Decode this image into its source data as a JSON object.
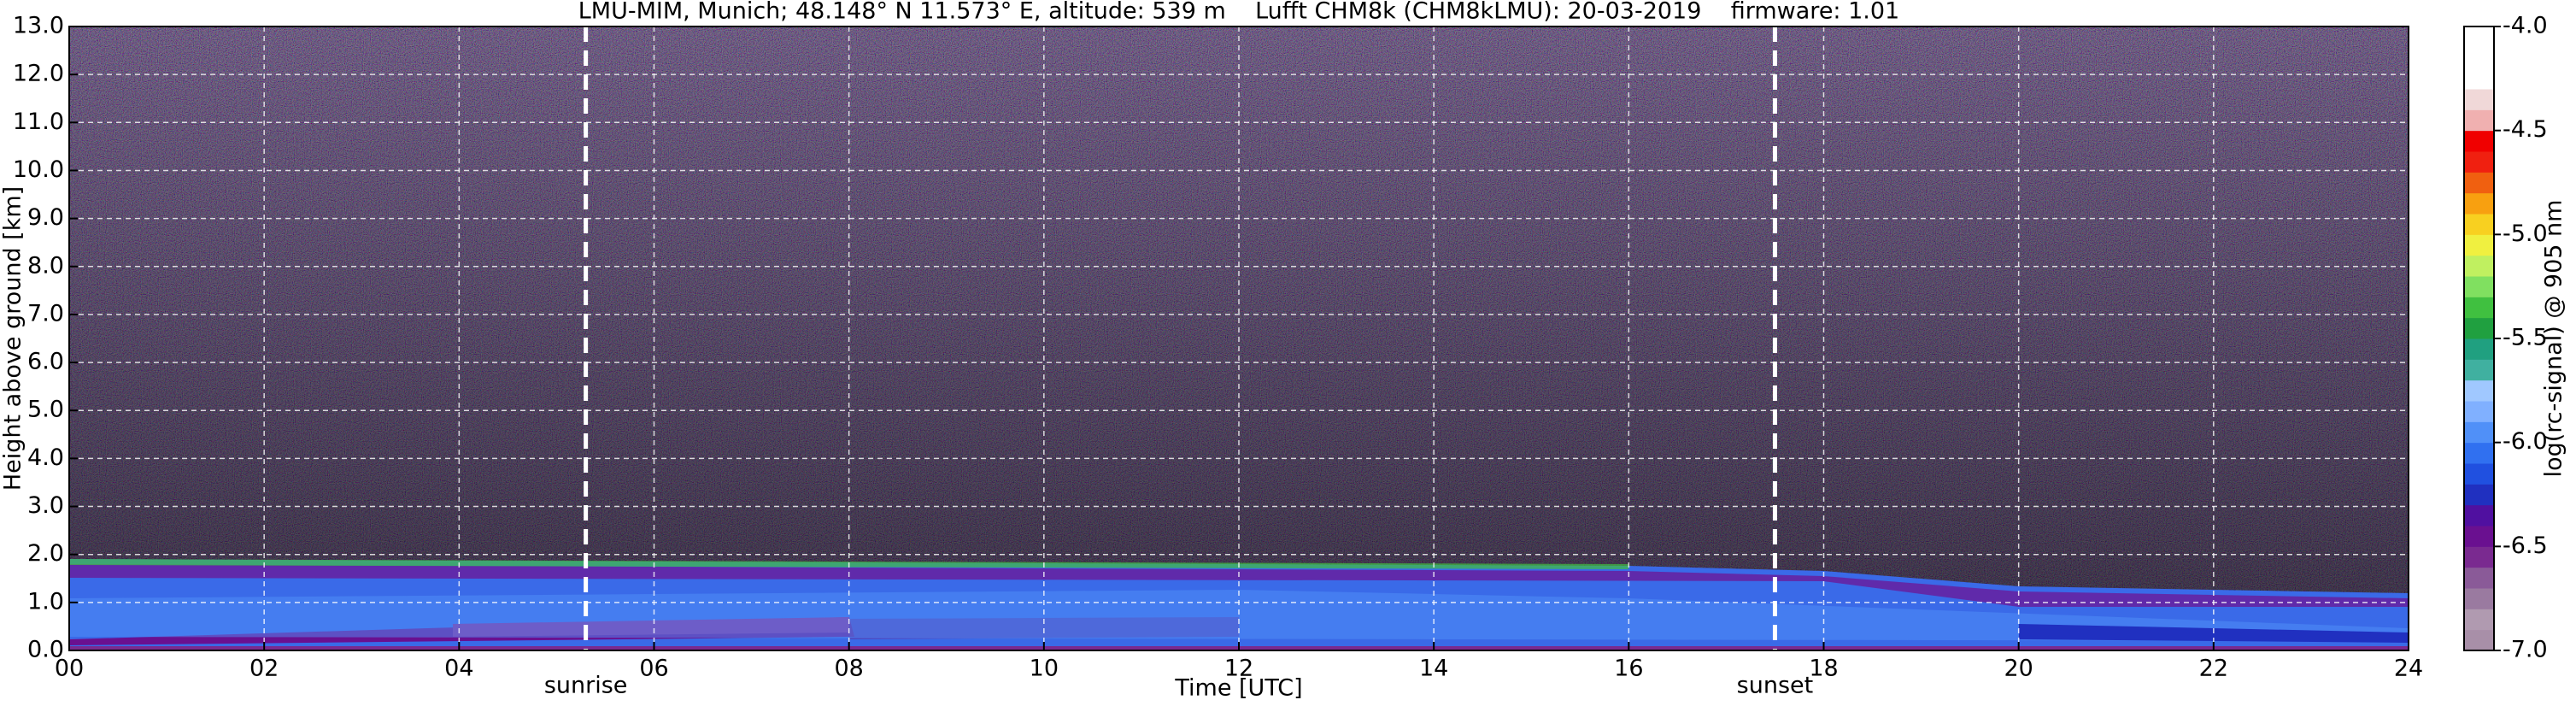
{
  "chart_data": {
    "type": "heatmap",
    "title": "LMU-MIM, Munich; 48.148° N 11.573° E, altitude: 539 m    Lufft CHM8k (CHM8kLMU): 20-03-2019    firmware: 1.01",
    "x_label": "Time [UTC]",
    "y_label": "Height above ground [km]",
    "colorbar_label": "log(rc-signal) @ 905 nm",
    "xlim": [
      0,
      24
    ],
    "xticks": [
      {
        "value": 0,
        "label": "00"
      },
      {
        "value": 2,
        "label": "02"
      },
      {
        "value": 4,
        "label": "04"
      },
      {
        "value": 6,
        "label": "06"
      },
      {
        "value": 8,
        "label": "08"
      },
      10,
      12,
      14,
      16,
      18,
      20,
      22,
      24
    ],
    "ylim": [
      0,
      13
    ],
    "yticks": [
      {
        "value": 0,
        "label": "0.0"
      },
      {
        "value": 1,
        "label": "1.0"
      },
      {
        "value": 2,
        "label": "2.0"
      },
      {
        "value": 3,
        "label": "3.0"
      },
      {
        "value": 4,
        "label": "4.0"
      },
      {
        "value": 5,
        "label": "5.0"
      },
      {
        "value": 6,
        "label": "6.0"
      },
      {
        "value": 7,
        "label": "7.0"
      },
      {
        "value": 8,
        "label": "8.0"
      },
      {
        "value": 9,
        "label": "9.0"
      },
      {
        "value": 10,
        "label": "10.0"
      },
      {
        "value": 11,
        "label": "11.0"
      },
      {
        "value": 12,
        "label": "12.0"
      },
      {
        "value": 13,
        "label": "13.0"
      }
    ],
    "clim": [
      -7,
      -4
    ],
    "cticks": [
      {
        "value": -4,
        "label": "-4.0"
      },
      -4.5,
      {
        "value": -5,
        "label": "-5.0"
      },
      -5.5,
      {
        "value": -6,
        "label": "-6.0"
      },
      -6.5,
      {
        "value": -7,
        "label": "-7.0"
      }
    ],
    "colormap": [
      "#a88fa8",
      "#b09ab0",
      "#9a7aa0",
      "#8a5a98",
      "#7a2a90",
      "#6a1090",
      "#5010a0",
      "#2030c0",
      "#2050e0",
      "#3070f0",
      "#5090f8",
      "#80b0ff",
      "#a0c8ff",
      "#40b0a0",
      "#20a080",
      "#20a040",
      "#40c040",
      "#80e060",
      "#c0f060",
      "#f0f040",
      "#f8d020",
      "#f8a010",
      "#f06010",
      "#f02010",
      "#f00000",
      "#f0b0b0",
      "#f0d8d8",
      "#ffffff",
      "#ffffff",
      "#ffffff"
    ],
    "grid": true,
    "annotations": [
      {
        "x": 5.3,
        "label": "sunrise"
      },
      {
        "x": 17.5,
        "label": "sunset"
      }
    ]
  }
}
